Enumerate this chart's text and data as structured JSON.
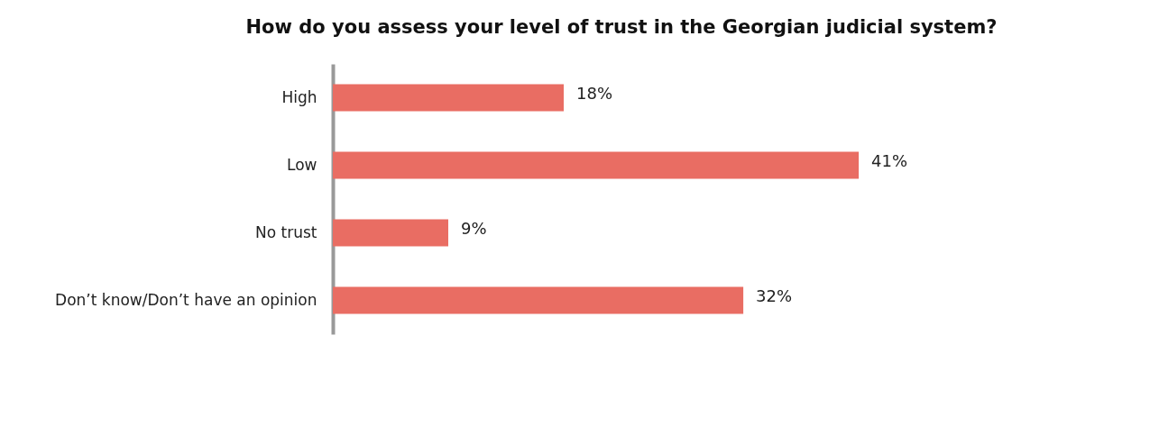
{
  "chart_data": {
    "type": "bar",
    "orientation": "horizontal",
    "title": "How do you assess your level of trust in the Georgian judicial system?",
    "categories": [
      "High",
      "Low",
      "No trust",
      "Don’t know/Don’t have an opinion"
    ],
    "values": [
      18,
      41,
      9,
      32
    ],
    "value_labels": [
      "18%",
      "41%",
      "9%",
      "32%"
    ],
    "color": "#e96d63",
    "grid": false,
    "tick_labels": "y"
  }
}
